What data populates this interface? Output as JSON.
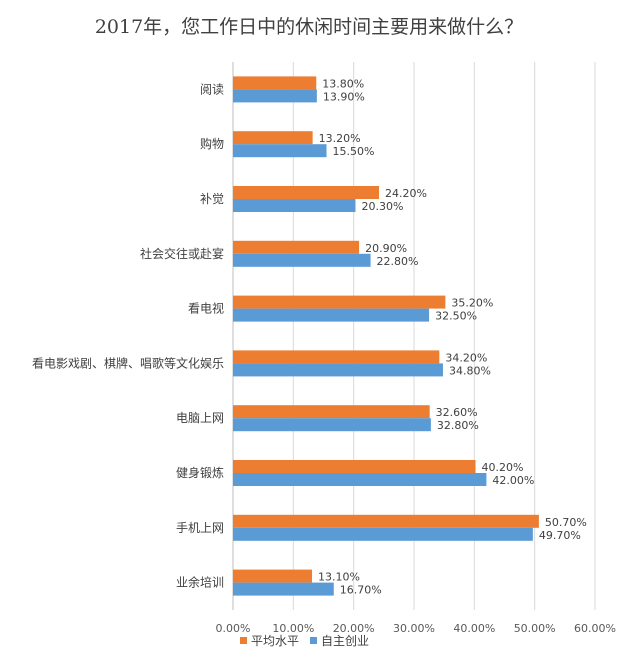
{
  "chart_data": {
    "type": "bar",
    "orientation": "horizontal",
    "title": "2017年，您工作日中的休闲时间主要用来做什么？",
    "categories": [
      "阅读",
      "购物",
      "补觉",
      "社会交往或赴宴",
      "看电视",
      "看电影戏剧、棋牌、唱歌等文化娱乐",
      "电脑上网",
      "健身锻炼",
      "手机上网",
      "业余培训"
    ],
    "series": [
      {
        "name": "平均水平",
        "color": "#ED7D31",
        "values": [
          13.8,
          13.2,
          24.2,
          20.9,
          35.2,
          34.2,
          32.6,
          40.2,
          50.7,
          13.1
        ],
        "labels": [
          "13.80%",
          "13.20%",
          "24.20%",
          "20.90%",
          "35.20%",
          "34.20%",
          "32.60%",
          "40.20%",
          "50.70%",
          "13.10%"
        ]
      },
      {
        "name": "自主创业",
        "color": "#5B9BD5",
        "values": [
          13.9,
          15.5,
          20.3,
          22.8,
          32.5,
          34.8,
          32.8,
          42.0,
          49.7,
          16.7
        ],
        "labels": [
          "13.90%",
          "15.50%",
          "20.30%",
          "22.80%",
          "32.50%",
          "34.80%",
          "32.80%",
          "42.00%",
          "49.70%",
          "16.70%"
        ]
      }
    ],
    "xlim": [
      0,
      60
    ],
    "xticks": [
      "0.00%",
      "10.00%",
      "20.00%",
      "30.00%",
      "40.00%",
      "50.00%",
      "60.00%"
    ],
    "grid": true,
    "legend_position": "bottom"
  }
}
